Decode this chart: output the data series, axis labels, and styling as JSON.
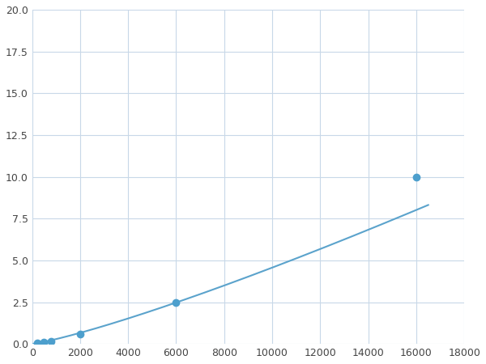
{
  "x": [
    0,
    200,
    500,
    800,
    2000,
    6000,
    16000
  ],
  "y": [
    0.0,
    0.07,
    0.1,
    0.15,
    0.6,
    2.5,
    10.0
  ],
  "line_color": "#5ba3cc",
  "marker_x": [
    200,
    500,
    800,
    2000,
    6000,
    16000
  ],
  "marker_y": [
    0.07,
    0.1,
    0.15,
    0.6,
    2.5,
    10.0
  ],
  "marker_color": "#4d9fcd",
  "marker_size": 6,
  "linewidth": 1.5,
  "xlim": [
    0,
    18000
  ],
  "ylim": [
    0,
    20
  ],
  "xticks": [
    0,
    2000,
    4000,
    6000,
    8000,
    10000,
    12000,
    14000,
    16000,
    18000
  ],
  "yticks": [
    0.0,
    2.5,
    5.0,
    7.5,
    10.0,
    12.5,
    15.0,
    17.5,
    20.0
  ],
  "grid_color": "#c8d8e8",
  "background_color": "#ffffff",
  "spine_color": "#c0c0c0",
  "power": 1.6
}
